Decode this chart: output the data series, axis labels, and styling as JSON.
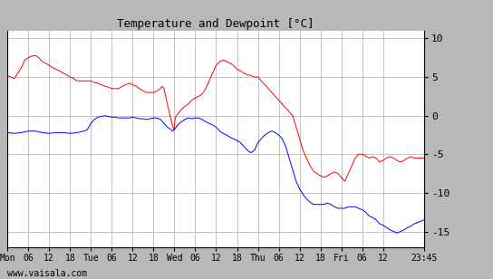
{
  "title": "Temperature and Dewpoint [°C]",
  "ylim": [
    -17,
    11
  ],
  "yticks": [
    -15,
    -10,
    -5,
    0,
    5,
    10
  ],
  "background_color": "#ffffff",
  "panel_color": "#b8b8b8",
  "grid_color": "#aaaaaa",
  "temp_color": "#ff0000",
  "dew_color": "#0000ff",
  "watermark": "www.vaisala.com",
  "x_tick_labels": [
    "Mon",
    "06",
    "12",
    "18",
    "Tue",
    "06",
    "12",
    "18",
    "Wed",
    "06",
    "12",
    "18",
    "Thu",
    "06",
    "12",
    "18",
    "Fri",
    "06",
    "12",
    "23:45"
  ],
  "x_tick_positions": [
    0,
    6,
    12,
    18,
    24,
    30,
    36,
    42,
    48,
    54,
    60,
    66,
    72,
    78,
    84,
    90,
    96,
    102,
    108,
    119.75
  ],
  "x_total": 119.75,
  "temp_data": [
    [
      0,
      5.2
    ],
    [
      1,
      5.0
    ],
    [
      2,
      4.8
    ],
    [
      3,
      5.5
    ],
    [
      4,
      6.2
    ],
    [
      5,
      7.2
    ],
    [
      6,
      7.5
    ],
    [
      7,
      7.7
    ],
    [
      8,
      7.8
    ],
    [
      9,
      7.5
    ],
    [
      10,
      7.0
    ],
    [
      11,
      6.8
    ],
    [
      12,
      6.5
    ],
    [
      13,
      6.2
    ],
    [
      14,
      6.0
    ],
    [
      15,
      5.8
    ],
    [
      16,
      5.5
    ],
    [
      17,
      5.3
    ],
    [
      18,
      5.0
    ],
    [
      19,
      4.8
    ],
    [
      20,
      4.5
    ],
    [
      21,
      4.5
    ],
    [
      22,
      4.5
    ],
    [
      23,
      4.5
    ],
    [
      24,
      4.5
    ],
    [
      25,
      4.3
    ],
    [
      26,
      4.2
    ],
    [
      27,
      4.0
    ],
    [
      28,
      3.8
    ],
    [
      29,
      3.7
    ],
    [
      30,
      3.5
    ],
    [
      31,
      3.5
    ],
    [
      32,
      3.5
    ],
    [
      33,
      3.8
    ],
    [
      34,
      4.0
    ],
    [
      35,
      4.2
    ],
    [
      36,
      4.0
    ],
    [
      37,
      3.8
    ],
    [
      38,
      3.5
    ],
    [
      39,
      3.2
    ],
    [
      40,
      3.0
    ],
    [
      41,
      3.0
    ],
    [
      42,
      3.0
    ],
    [
      43,
      3.2
    ],
    [
      44,
      3.5
    ],
    [
      44.5,
      3.8
    ],
    [
      45,
      3.5
    ],
    [
      45.5,
      2.5
    ],
    [
      46,
      1.5
    ],
    [
      46.5,
      0.5
    ],
    [
      47,
      -0.5
    ],
    [
      47.3,
      -1.0
    ],
    [
      47.6,
      -1.5
    ],
    [
      47.9,
      -1.8
    ],
    [
      48.2,
      -0.5
    ],
    [
      48.5,
      0.0
    ],
    [
      49,
      0.2
    ],
    [
      49.5,
      0.5
    ],
    [
      50,
      0.8
    ],
    [
      51,
      1.2
    ],
    [
      52,
      1.5
    ],
    [
      53,
      2.0
    ],
    [
      54,
      2.3
    ],
    [
      55,
      2.5
    ],
    [
      56,
      2.8
    ],
    [
      57,
      3.5
    ],
    [
      58,
      4.5
    ],
    [
      59,
      5.5
    ],
    [
      60,
      6.5
    ],
    [
      61,
      7.0
    ],
    [
      62,
      7.2
    ],
    [
      63,
      7.0
    ],
    [
      64,
      6.8
    ],
    [
      65,
      6.5
    ],
    [
      66,
      6.0
    ],
    [
      67,
      5.8
    ],
    [
      68,
      5.5
    ],
    [
      69,
      5.3
    ],
    [
      70,
      5.2
    ],
    [
      71,
      5.0
    ],
    [
      72,
      5.0
    ],
    [
      73,
      4.5
    ],
    [
      74,
      4.0
    ],
    [
      75,
      3.5
    ],
    [
      76,
      3.0
    ],
    [
      77,
      2.5
    ],
    [
      78,
      2.0
    ],
    [
      79,
      1.5
    ],
    [
      80,
      1.0
    ],
    [
      81,
      0.5
    ],
    [
      82,
      0.0
    ],
    [
      83,
      -1.5
    ],
    [
      84,
      -3.0
    ],
    [
      85,
      -4.5
    ],
    [
      86,
      -5.5
    ],
    [
      87,
      -6.5
    ],
    [
      88,
      -7.2
    ],
    [
      89,
      -7.5
    ],
    [
      90,
      -7.8
    ],
    [
      91,
      -8.0
    ],
    [
      92,
      -7.8
    ],
    [
      93,
      -7.5
    ],
    [
      94,
      -7.3
    ],
    [
      95,
      -7.5
    ],
    [
      96,
      -8.0
    ],
    [
      97,
      -8.5
    ],
    [
      98,
      -7.5
    ],
    [
      99,
      -6.5
    ],
    [
      100,
      -5.5
    ],
    [
      101,
      -5.0
    ],
    [
      102,
      -5.0
    ],
    [
      103,
      -5.2
    ],
    [
      104,
      -5.5
    ],
    [
      105,
      -5.3
    ],
    [
      106,
      -5.5
    ],
    [
      107,
      -6.0
    ],
    [
      108,
      -5.8
    ],
    [
      109,
      -5.5
    ],
    [
      110,
      -5.3
    ],
    [
      111,
      -5.5
    ],
    [
      112,
      -5.8
    ],
    [
      113,
      -6.0
    ],
    [
      114,
      -5.8
    ],
    [
      115,
      -5.5
    ],
    [
      116,
      -5.3
    ],
    [
      117,
      -5.5
    ],
    [
      119.75,
      -5.5
    ]
  ],
  "dew_data": [
    [
      0,
      -2.2
    ],
    [
      2,
      -2.3
    ],
    [
      4,
      -2.2
    ],
    [
      6,
      -2.0
    ],
    [
      8,
      -2.0
    ],
    [
      10,
      -2.2
    ],
    [
      12,
      -2.3
    ],
    [
      14,
      -2.2
    ],
    [
      16,
      -2.2
    ],
    [
      18,
      -2.3
    ],
    [
      20,
      -2.2
    ],
    [
      22,
      -2.0
    ],
    [
      23,
      -1.8
    ],
    [
      24,
      -1.0
    ],
    [
      25,
      -0.5
    ],
    [
      26,
      -0.2
    ],
    [
      27,
      -0.1
    ],
    [
      28,
      0.0
    ],
    [
      29,
      -0.1
    ],
    [
      30,
      -0.2
    ],
    [
      31,
      -0.2
    ],
    [
      32,
      -0.3
    ],
    [
      33,
      -0.3
    ],
    [
      34,
      -0.3
    ],
    [
      35,
      -0.3
    ],
    [
      36,
      -0.2
    ],
    [
      37,
      -0.3
    ],
    [
      38,
      -0.4
    ],
    [
      39,
      -0.4
    ],
    [
      40,
      -0.5
    ],
    [
      41,
      -0.4
    ],
    [
      42,
      -0.3
    ],
    [
      43,
      -0.3
    ],
    [
      44,
      -0.5
    ],
    [
      45,
      -1.0
    ],
    [
      46,
      -1.5
    ],
    [
      47,
      -1.8
    ],
    [
      47.5,
      -2.0
    ],
    [
      48,
      -1.8
    ],
    [
      48.5,
      -1.5
    ],
    [
      49,
      -1.2
    ],
    [
      49.5,
      -1.0
    ],
    [
      50,
      -0.8
    ],
    [
      51,
      -0.5
    ],
    [
      52,
      -0.3
    ],
    [
      53,
      -0.4
    ],
    [
      54,
      -0.3
    ],
    [
      55,
      -0.3
    ],
    [
      56,
      -0.5
    ],
    [
      57,
      -0.8
    ],
    [
      58,
      -1.0
    ],
    [
      59,
      -1.2
    ],
    [
      60,
      -1.5
    ],
    [
      61,
      -2.0
    ],
    [
      62,
      -2.3
    ],
    [
      63,
      -2.5
    ],
    [
      64,
      -2.8
    ],
    [
      65,
      -3.0
    ],
    [
      66,
      -3.2
    ],
    [
      67,
      -3.5
    ],
    [
      68,
      -4.0
    ],
    [
      69,
      -4.5
    ],
    [
      70,
      -4.8
    ],
    [
      71,
      -4.5
    ],
    [
      72,
      -3.5
    ],
    [
      73,
      -3.0
    ],
    [
      74,
      -2.5
    ],
    [
      75,
      -2.2
    ],
    [
      76,
      -2.0
    ],
    [
      77,
      -2.2
    ],
    [
      78,
      -2.5
    ],
    [
      79,
      -3.0
    ],
    [
      80,
      -4.0
    ],
    [
      81,
      -5.5
    ],
    [
      82,
      -7.0
    ],
    [
      83,
      -8.5
    ],
    [
      84,
      -9.5
    ],
    [
      85,
      -10.2
    ],
    [
      86,
      -10.8
    ],
    [
      87,
      -11.2
    ],
    [
      88,
      -11.5
    ],
    [
      89,
      -11.5
    ],
    [
      90,
      -11.5
    ],
    [
      91,
      -11.5
    ],
    [
      92,
      -11.3
    ],
    [
      93,
      -11.5
    ],
    [
      94,
      -11.8
    ],
    [
      95,
      -12.0
    ],
    [
      96,
      -12.0
    ],
    [
      97,
      -12.0
    ],
    [
      98,
      -11.8
    ],
    [
      99,
      -11.8
    ],
    [
      100,
      -11.8
    ],
    [
      101,
      -12.0
    ],
    [
      102,
      -12.2
    ],
    [
      103,
      -12.5
    ],
    [
      104,
      -13.0
    ],
    [
      105,
      -13.2
    ],
    [
      106,
      -13.5
    ],
    [
      107,
      -14.0
    ],
    [
      108,
      -14.2
    ],
    [
      109,
      -14.5
    ],
    [
      110,
      -14.8
    ],
    [
      111,
      -15.0
    ],
    [
      112,
      -15.2
    ],
    [
      113,
      -15.0
    ],
    [
      114,
      -14.8
    ],
    [
      115,
      -14.5
    ],
    [
      116,
      -14.3
    ],
    [
      117,
      -14.0
    ],
    [
      119.75,
      -13.5
    ]
  ]
}
